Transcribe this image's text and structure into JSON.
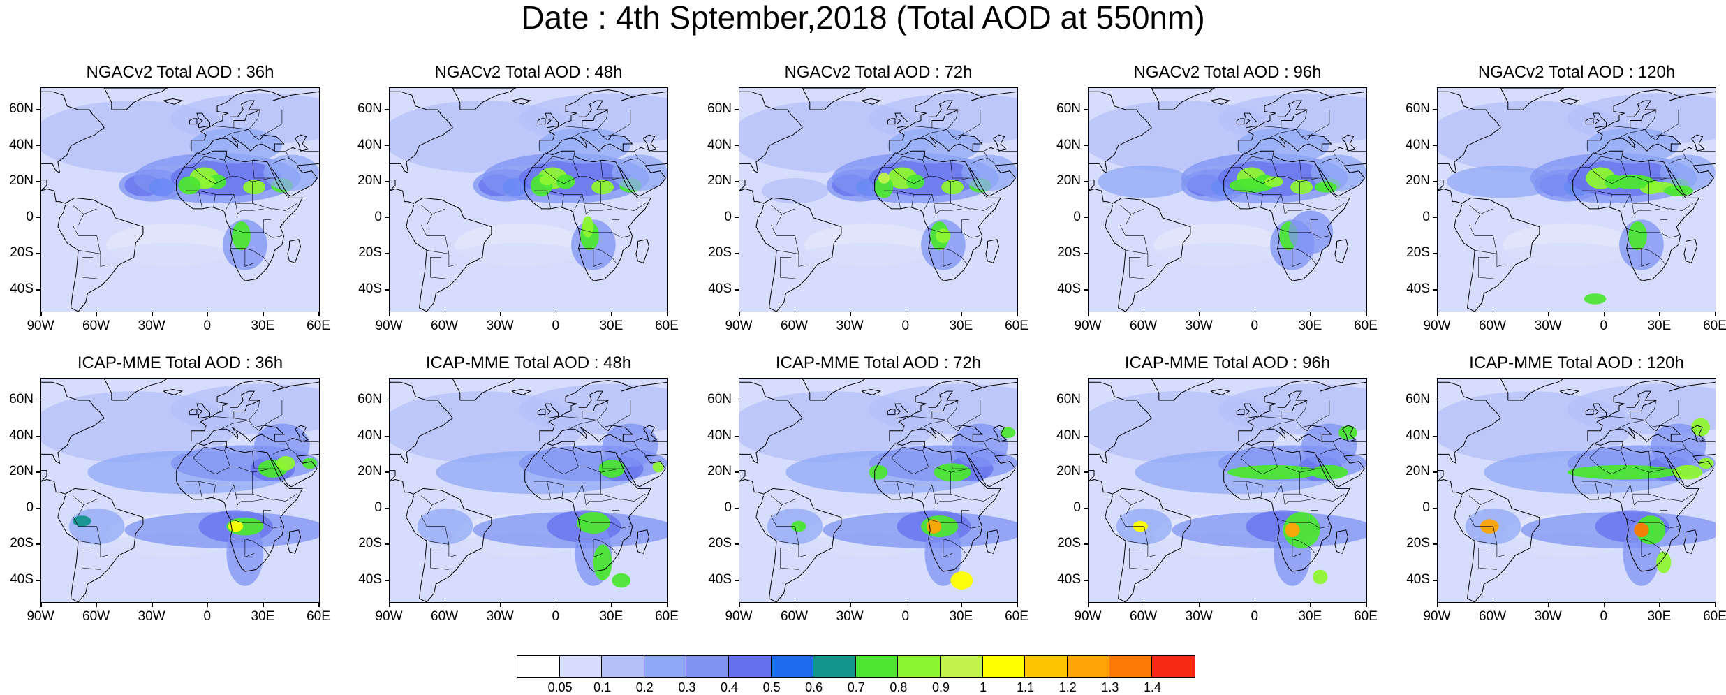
{
  "title": "Date : 4th Sptember,2018 (Total AOD at 550nm)",
  "axes": {
    "y_labels": [
      "60N",
      "40N",
      "20N",
      "0",
      "20S",
      "40S"
    ],
    "x_labels": [
      "90W",
      "60W",
      "30W",
      "0",
      "30E",
      "60E"
    ]
  },
  "panels": [
    {
      "title": "NGACv2 Total AOD : 36h"
    },
    {
      "title": "NGACv2 Total AOD : 48h"
    },
    {
      "title": "NGACv2 Total AOD : 72h"
    },
    {
      "title": "NGACv2 Total AOD : 96h"
    },
    {
      "title": "NGACv2 Total AOD : 120h"
    },
    {
      "title": "ICAP-MME Total AOD : 36h"
    },
    {
      "title": "ICAP-MME Total AOD : 48h"
    },
    {
      "title": "ICAP-MME Total AOD : 72h"
    },
    {
      "title": "ICAP-MME Total AOD : 96h"
    },
    {
      "title": "ICAP-MME Total AOD : 120h"
    }
  ],
  "colorbar": {
    "colors": [
      "#ffffff",
      "#d6dcfb",
      "#b4c0f8",
      "#90a9f6",
      "#7f93f3",
      "#6470ec",
      "#1f6bf0",
      "#13958e",
      "#4ce633",
      "#8ef532",
      "#c2f44c",
      "#ffff00",
      "#fdc502",
      "#fea404",
      "#fc7a03",
      "#f92a14"
    ],
    "labels": [
      "0.05",
      "0.1",
      "0.2",
      "0.3",
      "0.4",
      "0.5",
      "0.6",
      "0.7",
      "0.8",
      "0.9",
      "1",
      "1.1",
      "1.2",
      "1.3",
      "1.4"
    ]
  }
}
